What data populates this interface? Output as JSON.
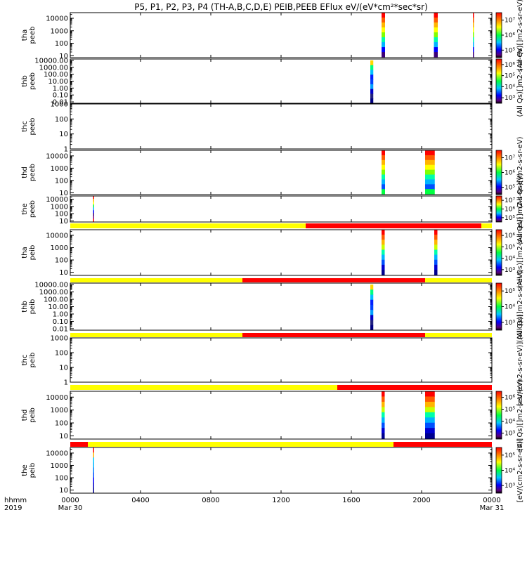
{
  "chart_data": {
    "type": "heatmap",
    "title": "P5, P1, P2, P3, P4 (TH-A,B,C,D,E) PEIB,PEEB EFlux eV/(eV*cm²*sec*sr)",
    "x_ticks": [
      {
        "hours": 0,
        "label": "0000",
        "sublabel": "Mar 30"
      },
      {
        "hours": 4,
        "label": "0400",
        "sublabel": ""
      },
      {
        "hours": 8,
        "label": "0800",
        "sublabel": ""
      },
      {
        "hours": 12,
        "label": "1200",
        "sublabel": ""
      },
      {
        "hours": 16,
        "label": "1600",
        "sublabel": ""
      },
      {
        "hours": 20,
        "label": "2000",
        "sublabel": ""
      },
      {
        "hours": 24,
        "label": "0000",
        "sublabel": "Mar 31"
      }
    ],
    "x_label": "hhmm",
    "year_label": "2019",
    "panels": [
      {
        "probe": "tha",
        "instrument": "peeb",
        "y_ticks": [
          "10",
          "100",
          "1000",
          "10000"
        ],
        "y_range_log": [
          0.85,
          4.45
        ],
        "colorbar_ticks": [
          "10⁵",
          "10⁶",
          "10⁷"
        ],
        "colorbar_label": "(All Qs)[]m2-s-sr-eV)",
        "mode_bar": [],
        "blocks": [
          {
            "start_hour": 17.72,
            "end_hour": 17.92,
            "ylow_log": 0.9,
            "yhigh_log": 4.45
          },
          {
            "start_hour": 20.7,
            "end_hour": 20.92,
            "ylow_log": 0.9,
            "yhigh_log": 4.45
          },
          {
            "start_hour": 22.92,
            "end_hour": 22.98,
            "ylow_log": 0.9,
            "yhigh_log": 4.45
          }
        ]
      },
      {
        "probe": "thb",
        "instrument": "peeb",
        "y_ticks": [
          "0.01",
          "0.10",
          "1.00",
          "10.00",
          "100.00",
          "1000.00",
          "10000.00"
        ],
        "y_range_log": [
          -2.2,
          4.2
        ],
        "colorbar_ticks": [
          "10³",
          "10⁴",
          "10⁵",
          "10⁶"
        ],
        "colorbar_label": "(All Qs)[]m2-s-sr-eV)",
        "mode_bar": [],
        "blocks": [
          {
            "start_hour": 17.08,
            "end_hour": 17.25,
            "ylow_log": -2.2,
            "yhigh_log": 4.0
          }
        ]
      },
      {
        "probe": "thc",
        "instrument": "peeb",
        "y_ticks": [
          "1",
          "10",
          "100",
          "1000"
        ],
        "y_range_log": [
          0,
          3.0
        ],
        "colorbar_ticks": [],
        "colorbar_label": "",
        "mode_bar": [],
        "blocks": []
      },
      {
        "probe": "thd",
        "instrument": "peeb",
        "y_ticks": [
          "10",
          "100",
          "1000",
          "10000"
        ],
        "y_range_log": [
          0.85,
          4.45
        ],
        "colorbar_ticks": [
          "10⁵",
          "10⁶",
          "10⁷"
        ],
        "colorbar_label": "(All Qs)[]m2-s-sr-eV)",
        "mode_bar": [],
        "blocks": [
          {
            "start_hour": 17.72,
            "end_hour": 17.92,
            "ylow_log": 0.9,
            "yhigh_log": 4.45
          },
          {
            "start_hour": 20.2,
            "end_hour": 20.75,
            "ylow_log": 0.9,
            "yhigh_log": 4.45
          }
        ]
      },
      {
        "probe": "the",
        "instrument": "peeb",
        "y_ticks": [
          "10",
          "100",
          "1000",
          "10000"
        ],
        "y_range_log": [
          0.85,
          4.45
        ],
        "colorbar_ticks": [
          "10⁵",
          "10⁶",
          "10⁷"
        ],
        "colorbar_label": "(All Qs)[]m2-s-sr-eV)",
        "mode_bar": [
          {
            "start_hour": 0,
            "end_hour": 13.4,
            "color": "#ffff00"
          },
          {
            "start_hour": 13.4,
            "end_hour": 23.4,
            "color": "#ff0000"
          },
          {
            "start_hour": 23.4,
            "end_hour": 24,
            "color": "#ffff00"
          }
        ],
        "blocks": [
          {
            "start_hour": 1.3,
            "end_hour": 1.36,
            "ylow_log": 0.9,
            "yhigh_log": 4.45
          }
        ]
      },
      {
        "probe": "tha",
        "instrument": "peib",
        "y_ticks": [
          "10",
          "100",
          "1000",
          "10000"
        ],
        "y_range_log": [
          0.75,
          4.45
        ],
        "colorbar_ticks": [
          "10³",
          "10⁴",
          "10⁵",
          "10⁶"
        ],
        "colorbar_label": "(All Qs)[]m2-s-sr-eV)",
        "mode_bar": [
          {
            "start_hour": 0,
            "end_hour": 9.8,
            "color": "#ffff00"
          },
          {
            "start_hour": 9.8,
            "end_hour": 20.2,
            "color": "#ff0000"
          },
          {
            "start_hour": 20.2,
            "end_hour": 24,
            "color": "#ffff00"
          }
        ],
        "blocks": [
          {
            "start_hour": 17.72,
            "end_hour": 17.9,
            "ylow_log": 0.8,
            "yhigh_log": 4.45
          },
          {
            "start_hour": 20.72,
            "end_hour": 20.9,
            "ylow_log": 0.8,
            "yhigh_log": 4.45
          }
        ]
      },
      {
        "probe": "thb",
        "instrument": "peib",
        "y_ticks": [
          "0.01",
          "0.10",
          "1.00",
          "10.00",
          "100.00",
          "1000.00",
          "10000.00"
        ],
        "y_range_log": [
          -2.2,
          4.2
        ],
        "colorbar_ticks": [
          "10³",
          "10⁴",
          "10⁵"
        ],
        "colorbar_label": "(All Qs)[]m2-s-sr-eV)",
        "mode_bar": [
          {
            "start_hour": 0,
            "end_hour": 9.8,
            "color": "#ffff00"
          },
          {
            "start_hour": 9.8,
            "end_hour": 20.2,
            "color": "#ff0000"
          },
          {
            "start_hour": 20.2,
            "end_hour": 24,
            "color": "#ffff00"
          }
        ],
        "blocks": [
          {
            "start_hour": 17.08,
            "end_hour": 17.25,
            "ylow_log": -2.2,
            "yhigh_log": 4.0
          }
        ]
      },
      {
        "probe": "thc",
        "instrument": "peib",
        "y_ticks": [
          "1",
          "10",
          "100",
          "1000"
        ],
        "y_range_log": [
          0,
          3.0
        ],
        "colorbar_ticks": [],
        "colorbar_label": "[eV/(cm2-s-sr-eV)] (All Qs)",
        "mode_bar": [
          {
            "start_hour": 0,
            "end_hour": 15.2,
            "color": "#ffff00"
          },
          {
            "start_hour": 15.2,
            "end_hour": 24,
            "color": "#ff0000"
          }
        ],
        "blocks": []
      },
      {
        "probe": "thd",
        "instrument": "peib",
        "y_ticks": [
          "10",
          "100",
          "1000",
          "10000"
        ],
        "y_range_log": [
          0.75,
          4.45
        ],
        "colorbar_ticks": [
          "10³",
          "10⁴",
          "10⁵",
          "10⁶"
        ],
        "colorbar_label": "(All Qs)[]m2-s-sr-eV)",
        "mode_bar": [
          {
            "start_hour": 0,
            "end_hour": 1.0,
            "color": "#ff0000"
          },
          {
            "start_hour": 1.0,
            "end_hour": 18.4,
            "color": "#ffff00"
          },
          {
            "start_hour": 18.4,
            "end_hour": 24,
            "color": "#ff0000"
          }
        ],
        "blocks": [
          {
            "start_hour": 17.72,
            "end_hour": 17.9,
            "ylow_log": 0.8,
            "yhigh_log": 4.45
          },
          {
            "start_hour": 20.2,
            "end_hour": 20.75,
            "ylow_log": 0.8,
            "yhigh_log": 4.45
          }
        ]
      },
      {
        "probe": "the",
        "instrument": "peib",
        "y_ticks": [
          "10",
          "100",
          "1000",
          "10000"
        ],
        "y_range_log": [
          0.75,
          4.45
        ],
        "colorbar_ticks": [
          "10³",
          "10⁴",
          "10⁵"
        ],
        "colorbar_label": "[eV/(cm2-s-sr-eV)]",
        "mode_bar": [],
        "blocks": [
          {
            "start_hour": 1.3,
            "end_hour": 1.36,
            "ylow_log": 0.8,
            "yhigh_log": 4.45
          }
        ]
      }
    ]
  }
}
